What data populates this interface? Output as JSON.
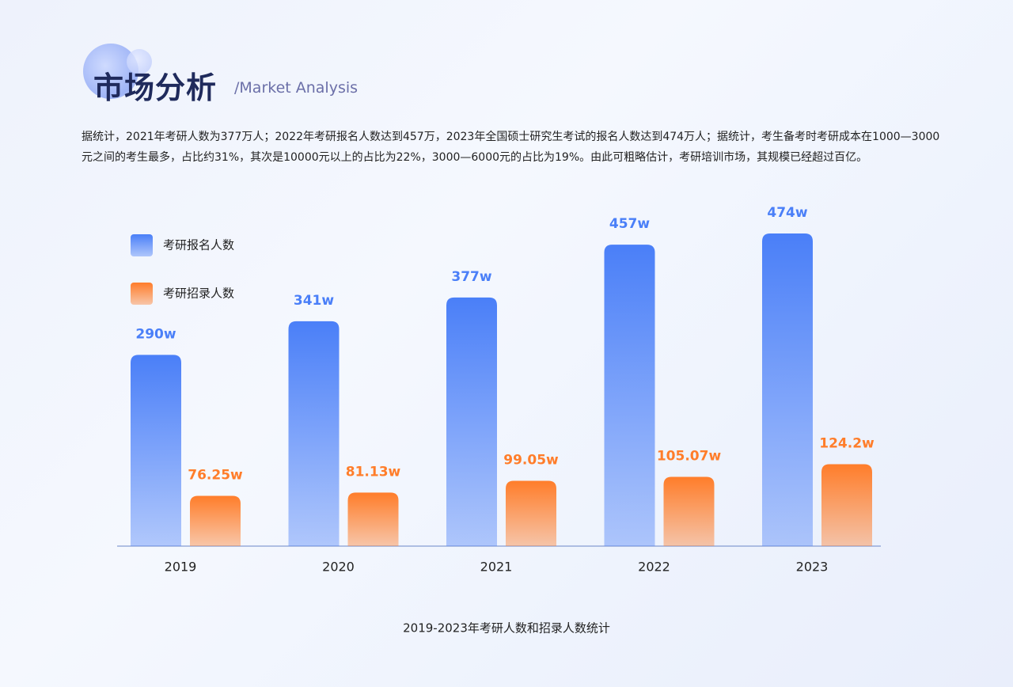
{
  "header": {
    "title": "市场分析",
    "subtitle": "/Market Analysis"
  },
  "description": "据统计，2021年考研人数为377万人；2022年考研报名人数达到457万，2023年全国硕士研究生考试的报名人数达到474万人；据统计，考生备考时考研成本在1000—3000元之间的考生最多，占比约31%，其次是10000元以上的占比为22%，3000—6000元的占比为19%。由此可粗略估计，考研培训市场，其规模已经超过百亿。",
  "chart_data": {
    "type": "bar",
    "title": "2019-2023年考研人数和招录人数统计",
    "categories": [
      "2019",
      "2020",
      "2021",
      "2022",
      "2023"
    ],
    "series": [
      {
        "name": "考研报名人数",
        "color": "#4a7ff8",
        "values": [
          290,
          341,
          377,
          457,
          474
        ],
        "value_labels": [
          "290w",
          "341w",
          "377w",
          "457w",
          "474w"
        ]
      },
      {
        "name": "考研招录人数",
        "color": "#ff7d2a",
        "values": [
          76.25,
          81.13,
          99.05,
          105.07,
          124.2
        ],
        "value_labels": [
          "76.25w",
          "81.13w",
          "99.05w",
          "105.07w",
          "124.2w"
        ]
      }
    ]
  }
}
